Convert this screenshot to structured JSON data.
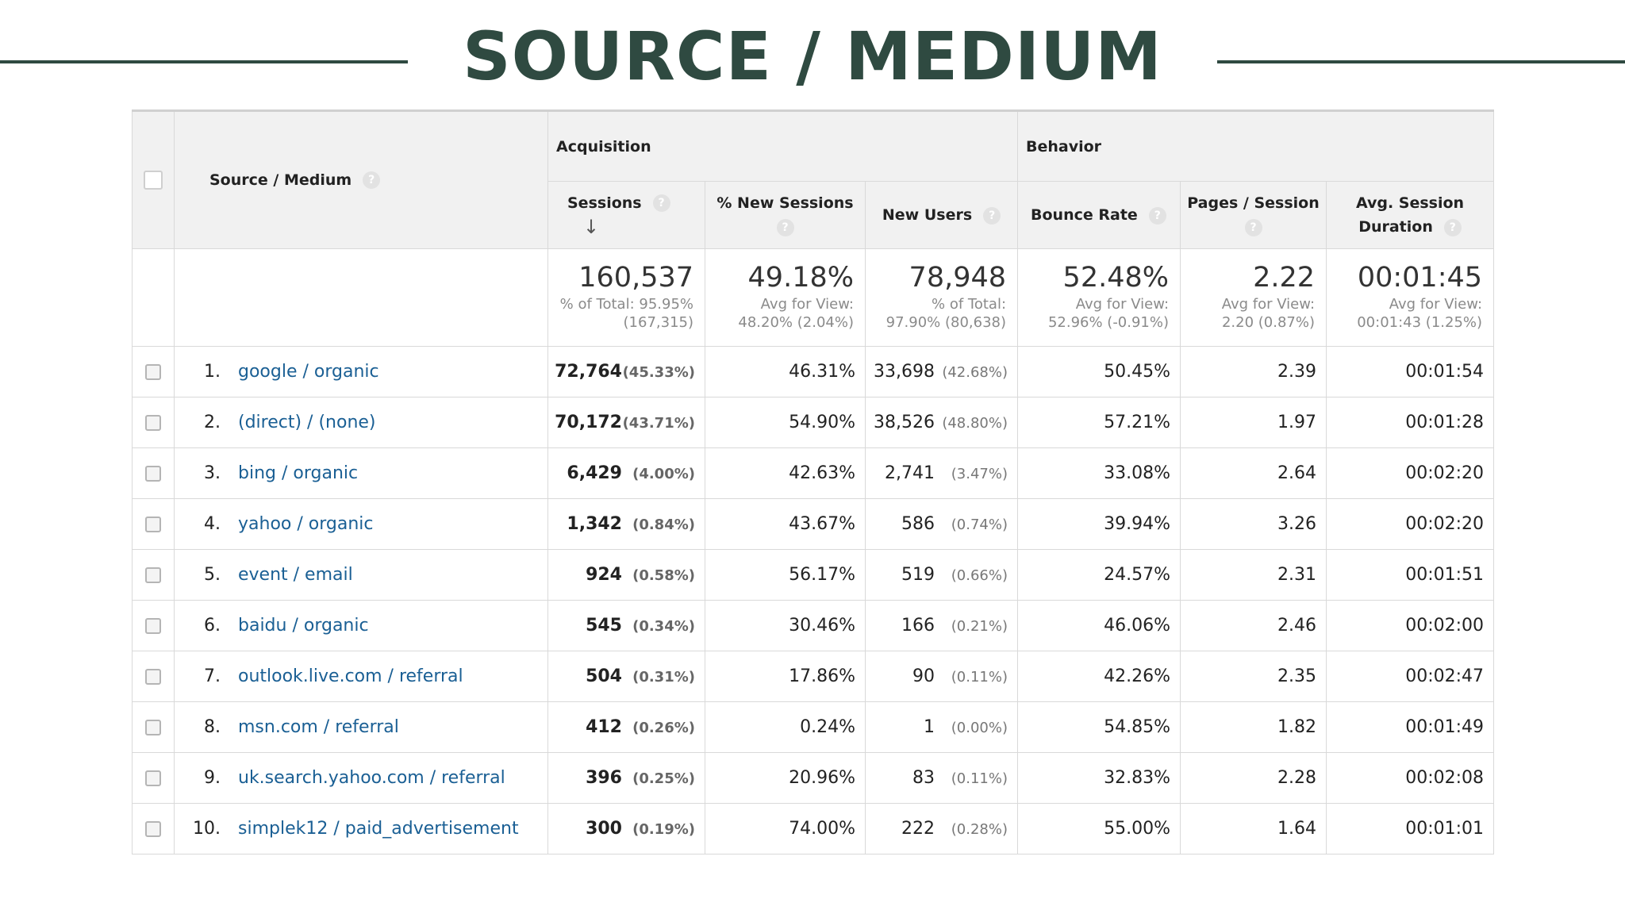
{
  "page_title": "SOURCE / MEDIUM",
  "table": {
    "header": {
      "dimension": "Source / Medium",
      "acquisition": "Acquisition",
      "behavior": "Behavior",
      "sessions": "Sessions",
      "new_sessions": "% New Sessions",
      "new_users": "New Users",
      "bounce_rate": "Bounce Rate",
      "pages_session": "Pages / Session",
      "avg_duration": "Avg. Session Duration",
      "help_glyph": "?",
      "sort_glyph": "↓"
    },
    "totals": {
      "sessions": "160,537",
      "sessions_sub1": "% of Total: 95.95%",
      "sessions_sub2": "(167,315)",
      "new_sessions": "49.18%",
      "new_sessions_sub1": "Avg for View:",
      "new_sessions_sub2": "48.20% (2.04%)",
      "new_users": "78,948",
      "new_users_sub1": "% of Total:",
      "new_users_sub2": "97.90% (80,638)",
      "bounce_rate": "52.48%",
      "bounce_rate_sub1": "Avg for View:",
      "bounce_rate_sub2": "52.96% (-0.91%)",
      "pages_session": "2.22",
      "pages_session_sub1": "Avg for View:",
      "pages_session_sub2": "2.20 (0.87%)",
      "avg_duration": "00:01:45",
      "avg_duration_sub1": "Avg for View:",
      "avg_duration_sub2": "00:01:43 (1.25%)"
    },
    "rows": [
      {
        "rank": "1.",
        "source": "google / organic",
        "sessions": "72,764",
        "sessions_pct": "(45.33%)",
        "new_sessions": "46.31%",
        "new_users": "33,698",
        "new_users_pct": "(42.68%)",
        "bounce_rate": "50.45%",
        "pages_session": "2.39",
        "avg_duration": "00:01:54"
      },
      {
        "rank": "2.",
        "source": "(direct) / (none)",
        "sessions": "70,172",
        "sessions_pct": "(43.71%)",
        "new_sessions": "54.90%",
        "new_users": "38,526",
        "new_users_pct": "(48.80%)",
        "bounce_rate": "57.21%",
        "pages_session": "1.97",
        "avg_duration": "00:01:28"
      },
      {
        "rank": "3.",
        "source": "bing / organic",
        "sessions": "6,429",
        "sessions_pct": "(4.00%)",
        "new_sessions": "42.63%",
        "new_users": "2,741",
        "new_users_pct": "(3.47%)",
        "bounce_rate": "33.08%",
        "pages_session": "2.64",
        "avg_duration": "00:02:20"
      },
      {
        "rank": "4.",
        "source": "yahoo / organic",
        "sessions": "1,342",
        "sessions_pct": "(0.84%)",
        "new_sessions": "43.67%",
        "new_users": "586",
        "new_users_pct": "(0.74%)",
        "bounce_rate": "39.94%",
        "pages_session": "3.26",
        "avg_duration": "00:02:20"
      },
      {
        "rank": "5.",
        "source": "event / email",
        "sessions": "924",
        "sessions_pct": "(0.58%)",
        "new_sessions": "56.17%",
        "new_users": "519",
        "new_users_pct": "(0.66%)",
        "bounce_rate": "24.57%",
        "pages_session": "2.31",
        "avg_duration": "00:01:51"
      },
      {
        "rank": "6.",
        "source": "baidu / organic",
        "sessions": "545",
        "sessions_pct": "(0.34%)",
        "new_sessions": "30.46%",
        "new_users": "166",
        "new_users_pct": "(0.21%)",
        "bounce_rate": "46.06%",
        "pages_session": "2.46",
        "avg_duration": "00:02:00"
      },
      {
        "rank": "7.",
        "source": "outlook.live.com / referral",
        "sessions": "504",
        "sessions_pct": "(0.31%)",
        "new_sessions": "17.86%",
        "new_users": "90",
        "new_users_pct": "(0.11%)",
        "bounce_rate": "42.26%",
        "pages_session": "2.35",
        "avg_duration": "00:02:47"
      },
      {
        "rank": "8.",
        "source": "msn.com / referral",
        "sessions": "412",
        "sessions_pct": "(0.26%)",
        "new_sessions": "0.24%",
        "new_users": "1",
        "new_users_pct": "(0.00%)",
        "bounce_rate": "54.85%",
        "pages_session": "1.82",
        "avg_duration": "00:01:49"
      },
      {
        "rank": "9.",
        "source": "uk.search.yahoo.com / referral",
        "sessions": "396",
        "sessions_pct": "(0.25%)",
        "new_sessions": "20.96%",
        "new_users": "83",
        "new_users_pct": "(0.11%)",
        "bounce_rate": "32.83%",
        "pages_session": "2.28",
        "avg_duration": "00:02:08"
      },
      {
        "rank": "10.",
        "source": "simplek12 / paid_advertisement",
        "sessions": "300",
        "sessions_pct": "(0.19%)",
        "new_sessions": "74.00%",
        "new_users": "222",
        "new_users_pct": "(0.28%)",
        "bounce_rate": "55.00%",
        "pages_session": "1.64",
        "avg_duration": "00:01:01"
      }
    ]
  }
}
